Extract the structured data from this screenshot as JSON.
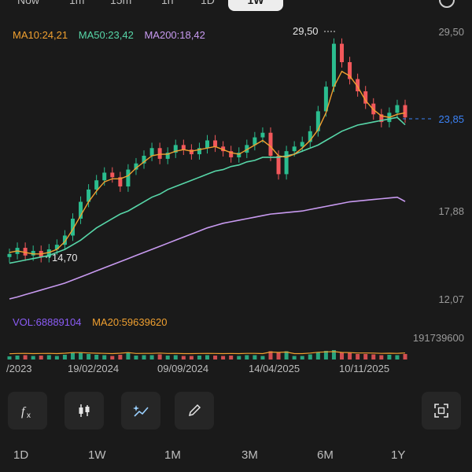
{
  "top_tabs": [
    "Now",
    "1m",
    "15m",
    "1h",
    "1D",
    "1W"
  ],
  "ma_legend": {
    "ma10": "MA10:24,21",
    "ma50": "MA50:23,42",
    "ma200": "MA200:18,42"
  },
  "price_axis": [
    "29,50",
    "23,85",
    "17,88",
    "12,07"
  ],
  "annotations": {
    "high": "29,50",
    "low": "14,70"
  },
  "volume_legend": {
    "vol": "VOL:68889104",
    "ma20": "MA20:59639620"
  },
  "volume_axis_max": "191739600",
  "date_axis": [
    "/2023",
    "19/02/2024",
    "09/09/2024",
    "14/04/2025",
    "10/11/2025"
  ],
  "range_buttons": [
    "1D",
    "1W",
    "1M",
    "3M",
    "6M",
    "1Y"
  ],
  "toolbar": {
    "icons": [
      "fx-icon",
      "candlestick-icon",
      "ai-trend-icon",
      "draw-pencil-icon",
      "fullscreen-icon"
    ]
  },
  "colors": {
    "up": "#2bbd8f",
    "down": "#f2585b",
    "ma10": "#f0a030",
    "ma50": "#57d6a8",
    "ma200": "#c89af0",
    "vol": "#8b5cf6",
    "last_price": "#3b82f6"
  },
  "chart_data": {
    "type": "candlestick",
    "y_range": [
      12.07,
      29.5
    ],
    "x_ticks": [
      "/2023",
      "19/02/2024",
      "09/09/2024",
      "14/04/2025",
      "10/11/2025"
    ],
    "price_ticks": [
      29.5,
      23.85,
      17.88,
      12.07
    ],
    "last_price": 23.85,
    "high": 29.5,
    "low": 14.7,
    "close": [
      15.0,
      15.4,
      14.9,
      15.2,
      14.8,
      15.3,
      15.6,
      16.2,
      17.3,
      18.4,
      19.2,
      19.8,
      20.3,
      20.0,
      19.4,
      20.5,
      20.9,
      21.4,
      21.9,
      21.2,
      21.6,
      22.1,
      21.8,
      21.5,
      21.9,
      22.4,
      22.0,
      21.7,
      21.3,
      21.6,
      22.1,
      22.6,
      22.9,
      21.4,
      20.2,
      21.7,
      22.0,
      22.3,
      23.0,
      24.3,
      25.9,
      28.7,
      27.5,
      26.4,
      25.6,
      24.8,
      24.1,
      23.6,
      24.2,
      24.7,
      23.9
    ],
    "ma10": [
      15.1,
      15.2,
      15.1,
      15.0,
      15.0,
      15.1,
      15.3,
      15.8,
      16.6,
      17.5,
      18.4,
      19.1,
      19.7,
      19.9,
      19.9,
      20.1,
      20.6,
      21.0,
      21.4,
      21.5,
      21.5,
      21.7,
      21.8,
      21.7,
      21.8,
      21.9,
      22.0,
      21.8,
      21.6,
      21.5,
      21.8,
      22.1,
      22.4,
      22.0,
      21.4,
      21.3,
      21.5,
      21.9,
      22.4,
      23.1,
      24.2,
      25.9,
      26.9,
      26.6,
      25.9,
      25.0,
      24.4,
      24.0,
      23.9,
      24.1,
      24.2
    ],
    "ma50": [
      14.4,
      14.5,
      14.6,
      14.7,
      14.8,
      14.9,
      15.1,
      15.3,
      15.6,
      15.9,
      16.3,
      16.7,
      17.0,
      17.3,
      17.6,
      17.8,
      18.1,
      18.4,
      18.7,
      18.9,
      19.2,
      19.4,
      19.6,
      19.8,
      20.0,
      20.2,
      20.4,
      20.5,
      20.7,
      20.8,
      21.0,
      21.1,
      21.3,
      21.3,
      21.3,
      21.4,
      21.5,
      21.7,
      21.9,
      22.1,
      22.4,
      22.7,
      23.0,
      23.2,
      23.4,
      23.5,
      23.6,
      23.7,
      23.8,
      23.9,
      23.42
    ],
    "ma200": [
      12.07,
      12.2,
      12.35,
      12.5,
      12.65,
      12.8,
      12.95,
      13.1,
      13.3,
      13.5,
      13.7,
      13.9,
      14.1,
      14.3,
      14.5,
      14.7,
      14.9,
      15.1,
      15.3,
      15.5,
      15.7,
      15.9,
      16.1,
      16.3,
      16.5,
      16.7,
      16.85,
      17.0,
      17.1,
      17.2,
      17.3,
      17.4,
      17.5,
      17.6,
      17.65,
      17.7,
      17.75,
      17.8,
      17.9,
      18.0,
      18.1,
      18.2,
      18.3,
      18.4,
      18.45,
      18.5,
      18.55,
      18.6,
      18.65,
      18.7,
      18.42
    ]
  }
}
